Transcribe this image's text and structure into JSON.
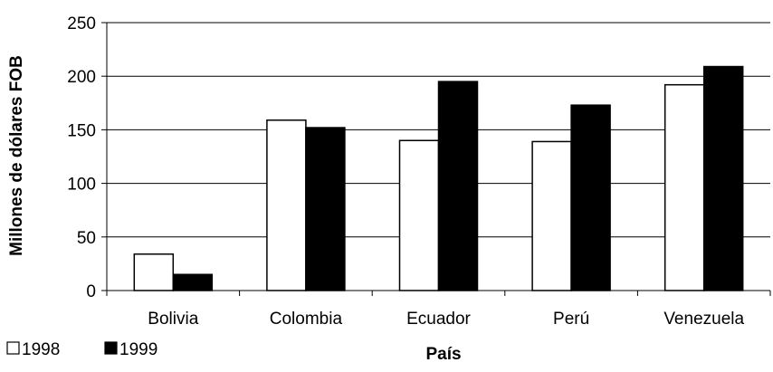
{
  "chart_data": {
    "type": "bar",
    "title": "",
    "xlabel": "País",
    "ylabel": "Millones de dólares FOB",
    "categories": [
      "Bolivia",
      "Colombia",
      "Ecuador",
      "Perú",
      "Venezuela"
    ],
    "series": [
      {
        "name": "1998",
        "color": "#ffffff",
        "values": [
          34,
          159,
          140,
          139,
          192
        ]
      },
      {
        "name": "1999",
        "color": "#000000",
        "values": [
          15,
          152,
          195,
          173,
          209
        ]
      }
    ],
    "ylim": [
      0,
      250
    ],
    "yticks": [
      0,
      50,
      100,
      150,
      200,
      250
    ],
    "grid": true,
    "legend_position": "bottom-left"
  }
}
